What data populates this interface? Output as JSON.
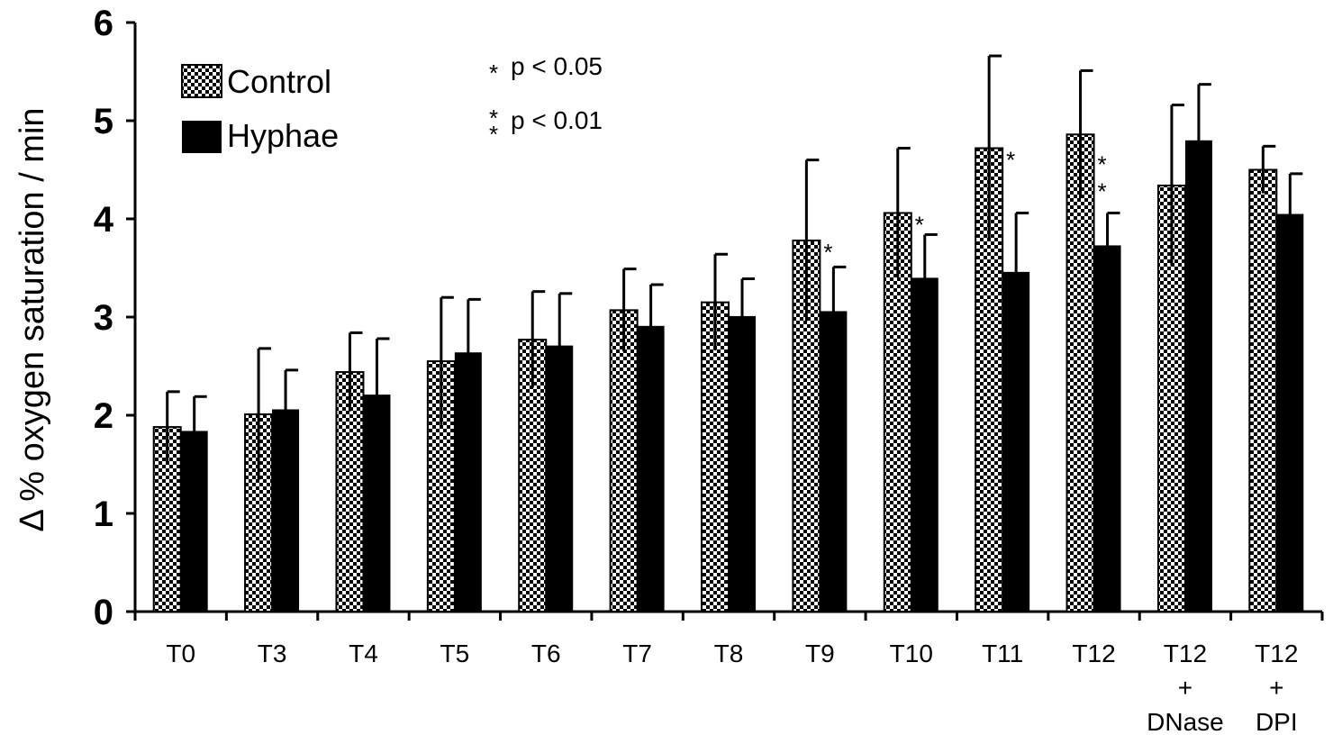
{
  "chart_data": {
    "type": "bar",
    "ylabel": "Δ % oxygen saturation / min",
    "ylim": [
      0,
      6
    ],
    "yticks": [
      "0",
      "1",
      "2",
      "3",
      "4",
      "5",
      "6"
    ],
    "categories": [
      [
        "T0"
      ],
      [
        "T3"
      ],
      [
        "T4"
      ],
      [
        "T5"
      ],
      [
        "T6"
      ],
      [
        "T7"
      ],
      [
        "T8"
      ],
      [
        "T9"
      ],
      [
        "T10"
      ],
      [
        "T11"
      ],
      [
        "T12"
      ],
      [
        "T12",
        "+",
        "DNase"
      ],
      [
        "T12",
        "+",
        "DPI"
      ]
    ],
    "series": [
      {
        "name": "Control",
        "pattern": "checkered",
        "values": [
          1.88,
          2.01,
          2.44,
          2.55,
          2.77,
          3.07,
          3.15,
          3.78,
          4.06,
          4.72,
          4.86,
          4.34,
          4.5
        ],
        "errors": [
          0.36,
          0.67,
          0.4,
          0.65,
          0.49,
          0.42,
          0.49,
          0.82,
          0.66,
          0.94,
          0.65,
          0.82,
          0.24
        ]
      },
      {
        "name": "Hyphae",
        "color": "#000000",
        "values": [
          1.84,
          2.06,
          2.21,
          2.64,
          2.71,
          2.91,
          3.01,
          3.06,
          3.4,
          3.46,
          3.73,
          4.8,
          4.05
        ],
        "errors": [
          0.35,
          0.4,
          0.57,
          0.54,
          0.53,
          0.42,
          0.38,
          0.45,
          0.44,
          0.6,
          0.33,
          0.57,
          0.41
        ]
      }
    ],
    "significance": [
      "",
      "",
      "",
      "",
      "",
      "",
      "",
      "*",
      "*",
      "*",
      "**",
      "",
      ""
    ],
    "legend": {
      "position": "top-left",
      "entries": [
        "Control",
        "Hyphae"
      ]
    },
    "notes": [
      {
        "marker": "*",
        "text": "p < 0.05"
      },
      {
        "marker": "**",
        "text": "p < 0.01"
      }
    ]
  }
}
